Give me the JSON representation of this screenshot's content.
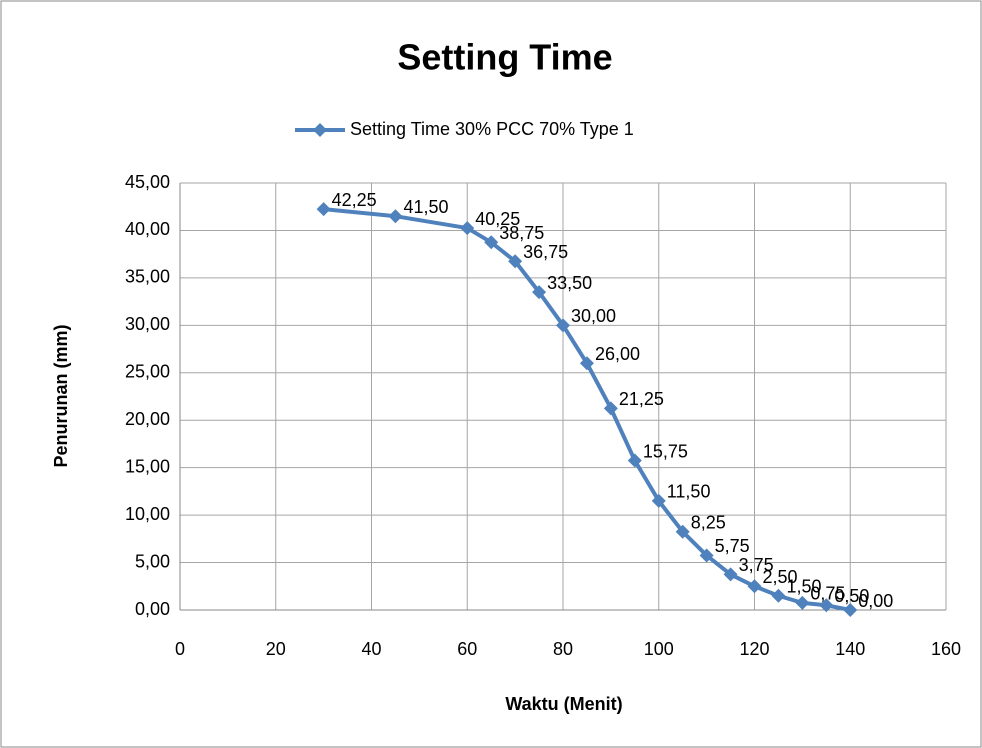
{
  "chart_data": {
    "type": "line",
    "title": "Setting Time",
    "x_label": "Waktu (Menit)",
    "y_label": "Penurunan (mm)",
    "x": [
      30,
      45,
      60,
      65,
      70,
      75,
      80,
      85,
      90,
      95,
      100,
      105,
      110,
      115,
      120,
      125,
      130,
      135,
      140
    ],
    "series": [
      {
        "name": "Setting Time 30% PCC 70% Type 1",
        "color": "#4f81bd",
        "values": [
          42.25,
          41.5,
          40.25,
          38.75,
          36.75,
          33.5,
          30,
          26,
          21.25,
          15.75,
          11.5,
          8.25,
          5.75,
          3.75,
          2.5,
          1.5,
          0.75,
          0.5,
          0
        ],
        "value_labels": [
          "42,25",
          "41,50",
          "40,25",
          "38,75",
          "36,75",
          "33,50",
          "30,00",
          "26,00",
          "21,25",
          "15,75",
          "11,50",
          "8,25",
          "5,75",
          "3,75",
          "2,50",
          "1,50",
          "0,75",
          "0,50",
          "0,00"
        ]
      }
    ],
    "xlim": [
      0,
      160
    ],
    "xticks": [
      0,
      20,
      40,
      60,
      80,
      100,
      120,
      140,
      160
    ],
    "ylim": [
      0,
      45
    ],
    "yticks": [
      {
        "value": 0,
        "label": "0,00"
      },
      {
        "value": 5,
        "label": "5,00"
      },
      {
        "value": 10,
        "label": "10,00"
      },
      {
        "value": 15,
        "label": "15,00"
      },
      {
        "value": 20,
        "label": "20,00"
      },
      {
        "value": 25,
        "label": "25,00"
      },
      {
        "value": 30,
        "label": "30,00"
      },
      {
        "value": 35,
        "label": "35,00"
      },
      {
        "value": 40,
        "label": "40,00"
      },
      {
        "value": 45,
        "label": "45,00"
      }
    ],
    "grid": true,
    "legend": "top"
  }
}
